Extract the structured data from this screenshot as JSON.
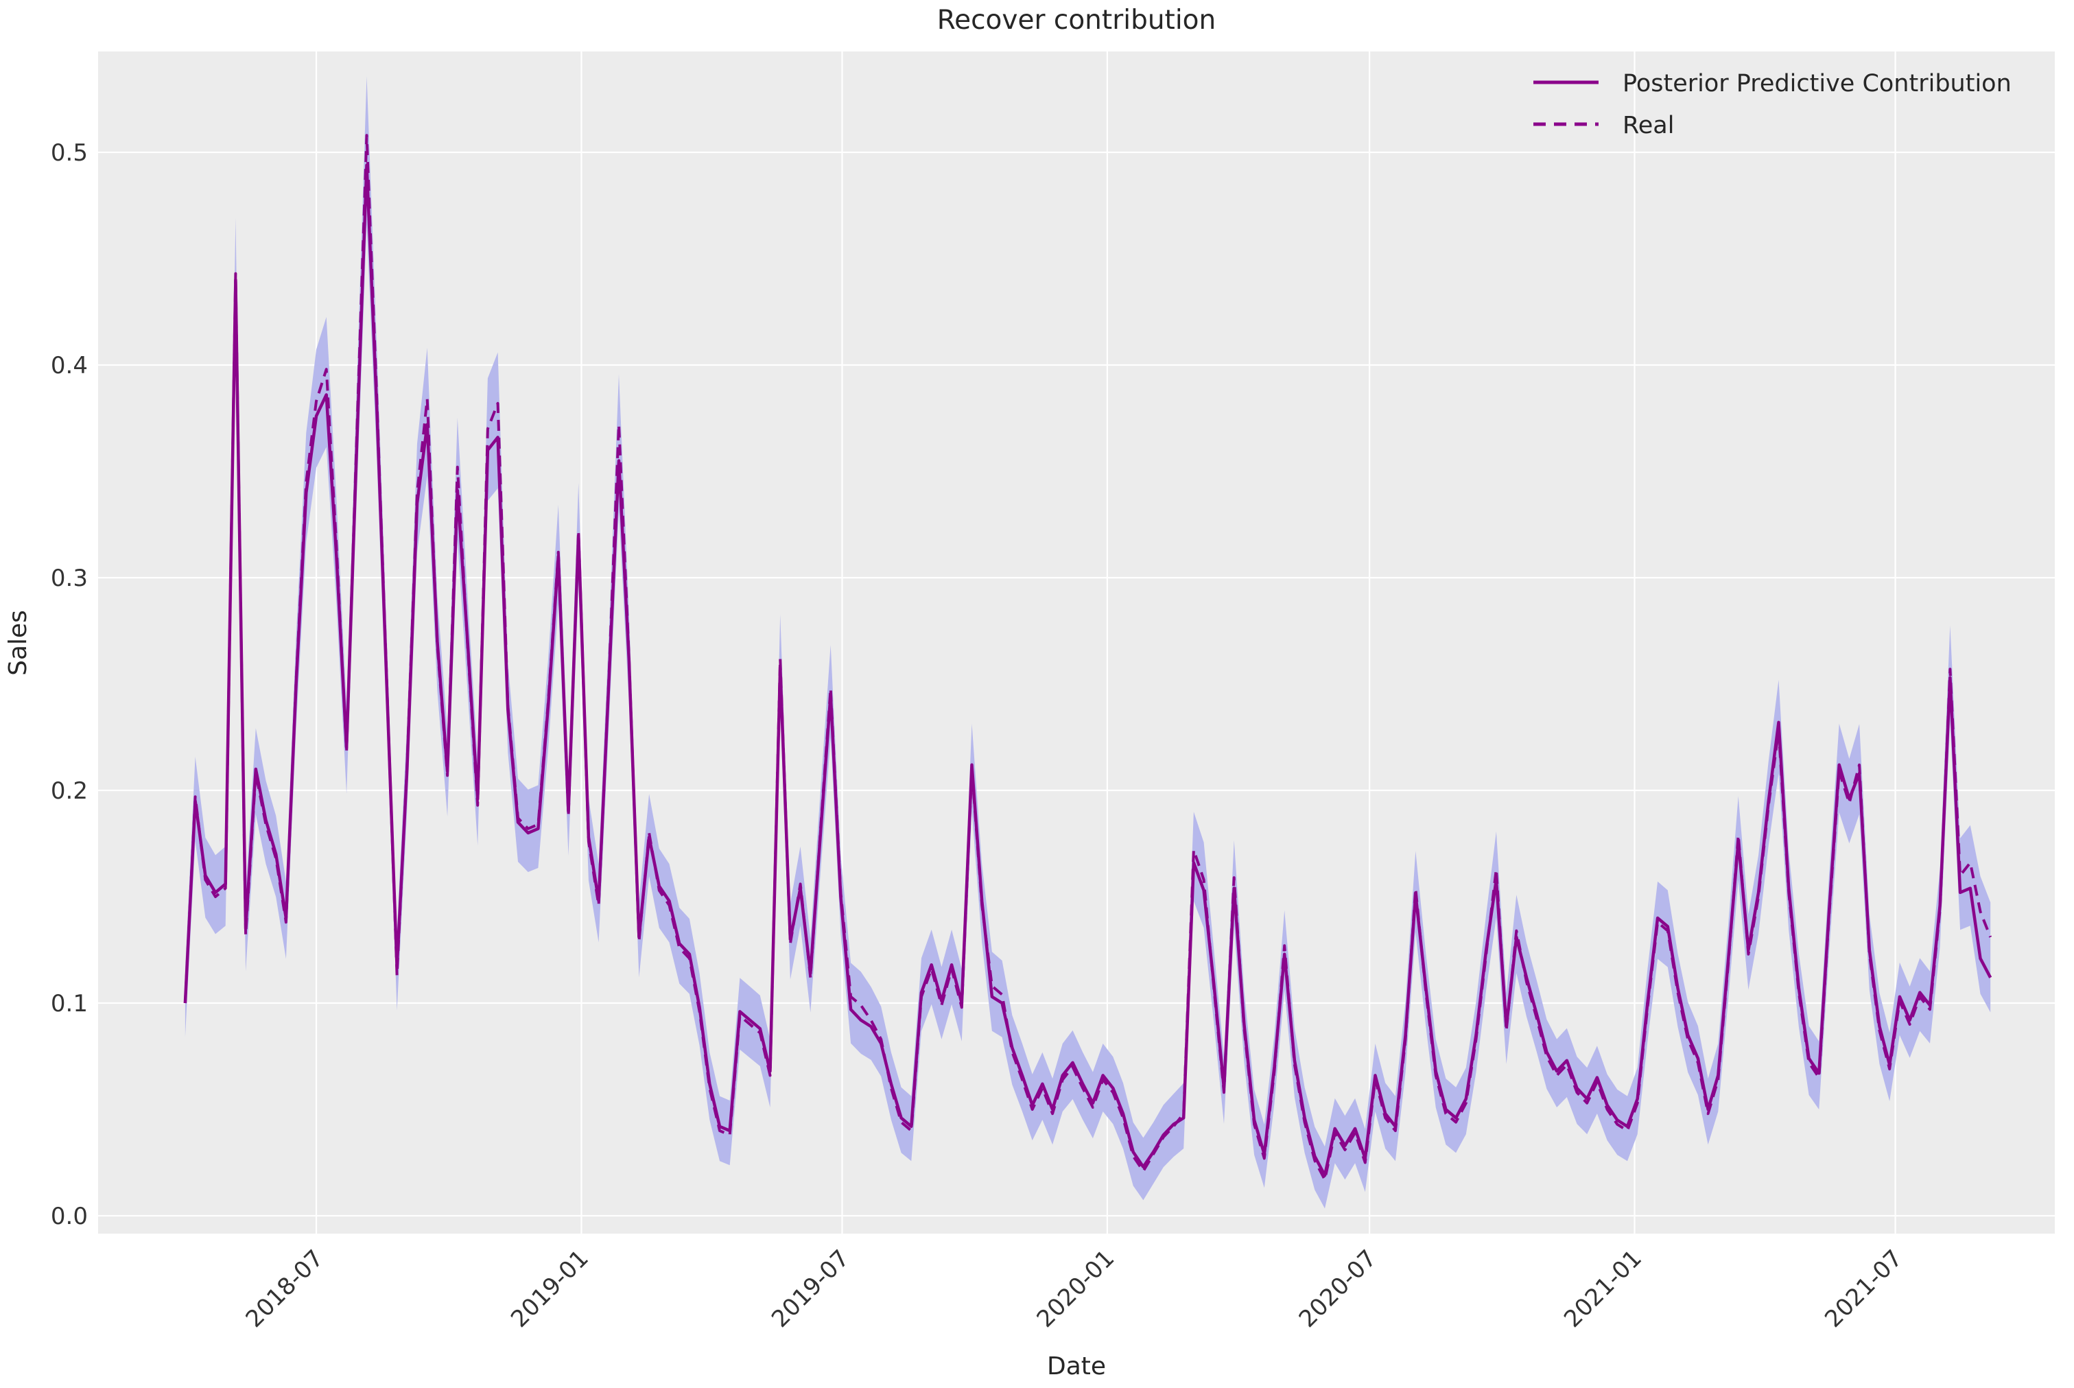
{
  "title": "Recover contribution",
  "axes": {
    "xlabel": "Date",
    "ylabel": "Sales",
    "y_tick_labels": [
      "0.0",
      "0.1",
      "0.2",
      "0.3",
      "0.4",
      "0.5"
    ],
    "y_tick_values": [
      0.0,
      0.1,
      0.2,
      0.3,
      0.4,
      0.5
    ],
    "x_tick_labels": [
      "2018-07",
      "2019-01",
      "2019-07",
      "2020-01",
      "2020-07",
      "2021-01",
      "2021-07"
    ],
    "x_tick_dates": [
      "2018-07-01",
      "2019-01-01",
      "2019-07-01",
      "2020-01-01",
      "2020-07-01",
      "2021-01-01",
      "2021-07-01"
    ]
  },
  "legend": {
    "entries": [
      {
        "label": "Posterior Predictive Contribution",
        "style": "solid"
      },
      {
        "label": "Real",
        "style": "dashed"
      }
    ],
    "position": "upper right"
  },
  "colors": {
    "line": "#8a058a",
    "band": "#b6b8ec",
    "plot_bg": "#ececec",
    "grid": "#ffffff",
    "text": "#262626"
  },
  "chart_data": {
    "type": "line",
    "title": "Recover contribution",
    "xlabel": "Date",
    "ylabel": "Sales",
    "x_start": "2018-04-01",
    "freq_days": 7,
    "n_points": 180,
    "x_axis_range": [
      "2018-02-02",
      "2021-10-24"
    ],
    "ylim": [
      0,
      0.55
    ],
    "grid": true,
    "legend_position": "upper right",
    "band": {
      "name": "posterior-hdi",
      "base_halfwidth": 0.013,
      "value_scale": 0.03
    },
    "series": [
      {
        "name": "Posterior Predictive Contribution",
        "style": "solid",
        "values": [
          0.1,
          0.195,
          0.16,
          0.152,
          0.156,
          0.44,
          0.135,
          0.21,
          0.186,
          0.17,
          0.14,
          0.25,
          0.34,
          0.376,
          0.386,
          0.31,
          0.22,
          0.36,
          0.494,
          0.38,
          0.248,
          0.117,
          0.21,
          0.335,
          0.372,
          0.27,
          0.209,
          0.341,
          0.27,
          0.196,
          0.36,
          0.366,
          0.238,
          0.185,
          0.18,
          0.182,
          0.24,
          0.31,
          0.19,
          0.32,
          0.178,
          0.148,
          0.25,
          0.355,
          0.262,
          0.131,
          0.178,
          0.155,
          0.148,
          0.128,
          0.123,
          0.098,
          0.062,
          0.042,
          0.04,
          0.096,
          0.092,
          0.088,
          0.068,
          0.258,
          0.13,
          0.154,
          0.114,
          0.18,
          0.245,
          0.15,
          0.097,
          0.092,
          0.089,
          0.081,
          0.062,
          0.046,
          0.042,
          0.105,
          0.118,
          0.101,
          0.118,
          0.1,
          0.212,
          0.148,
          0.103,
          0.1,
          0.079,
          0.066,
          0.052,
          0.062,
          0.05,
          0.066,
          0.072,
          0.062,
          0.053,
          0.066,
          0.06,
          0.048,
          0.03,
          0.023,
          0.03,
          0.038,
          0.043,
          0.046,
          0.166,
          0.153,
          0.109,
          0.06,
          0.154,
          0.09,
          0.045,
          0.029,
          0.07,
          0.123,
          0.073,
          0.046,
          0.028,
          0.019,
          0.041,
          0.033,
          0.041,
          0.027,
          0.066,
          0.048,
          0.042,
          0.085,
          0.151,
          0.108,
          0.068,
          0.05,
          0.046,
          0.055,
          0.085,
          0.125,
          0.158,
          0.089,
          0.131,
          0.112,
          0.095,
          0.077,
          0.068,
          0.073,
          0.06,
          0.055,
          0.065,
          0.052,
          0.045,
          0.042,
          0.055,
          0.1,
          0.14,
          0.136,
          0.107,
          0.085,
          0.074,
          0.05,
          0.066,
          0.12,
          0.176,
          0.125,
          0.152,
          0.195,
          0.232,
          0.154,
          0.107,
          0.074,
          0.067,
          0.143,
          0.212,
          0.196,
          0.208,
          0.125,
          0.089,
          0.071,
          0.103,
          0.092,
          0.105,
          0.099,
          0.146,
          0.253,
          0.152,
          0.154,
          0.121,
          0.112
        ]
      },
      {
        "name": "Real",
        "style": "dashed",
        "values": [
          0.1,
          0.197,
          0.158,
          0.15,
          0.154,
          0.443,
          0.132,
          0.208,
          0.184,
          0.168,
          0.138,
          0.252,
          0.345,
          0.383,
          0.398,
          0.315,
          0.218,
          0.365,
          0.508,
          0.385,
          0.25,
          0.113,
          0.212,
          0.34,
          0.384,
          0.268,
          0.207,
          0.352,
          0.268,
          0.193,
          0.37,
          0.382,
          0.24,
          0.187,
          0.182,
          0.184,
          0.242,
          0.312,
          0.188,
          0.322,
          0.176,
          0.146,
          0.252,
          0.372,
          0.264,
          0.129,
          0.18,
          0.153,
          0.146,
          0.126,
          0.121,
          0.096,
          0.06,
          0.04,
          0.038,
          0.094,
          0.09,
          0.086,
          0.066,
          0.262,
          0.128,
          0.156,
          0.112,
          0.182,
          0.248,
          0.152,
          0.103,
          0.099,
          0.092,
          0.083,
          0.06,
          0.044,
          0.04,
          0.103,
          0.116,
          0.099,
          0.116,
          0.098,
          0.21,
          0.146,
          0.108,
          0.104,
          0.077,
          0.064,
          0.05,
          0.06,
          0.048,
          0.064,
          0.07,
          0.06,
          0.051,
          0.064,
          0.058,
          0.046,
          0.028,
          0.021,
          0.029,
          0.037,
          0.042,
          0.048,
          0.172,
          0.158,
          0.107,
          0.058,
          0.159,
          0.088,
          0.043,
          0.027,
          0.068,
          0.127,
          0.071,
          0.044,
          0.026,
          0.017,
          0.039,
          0.031,
          0.039,
          0.025,
          0.064,
          0.046,
          0.04,
          0.083,
          0.154,
          0.106,
          0.066,
          0.048,
          0.044,
          0.053,
          0.083,
          0.123,
          0.163,
          0.087,
          0.134,
          0.11,
          0.093,
          0.075,
          0.066,
          0.071,
          0.058,
          0.053,
          0.063,
          0.05,
          0.043,
          0.04,
          0.053,
          0.098,
          0.138,
          0.134,
          0.105,
          0.083,
          0.072,
          0.048,
          0.064,
          0.118,
          0.179,
          0.123,
          0.15,
          0.193,
          0.228,
          0.152,
          0.105,
          0.072,
          0.065,
          0.141,
          0.209,
          0.194,
          0.212,
          0.123,
          0.087,
          0.069,
          0.101,
          0.09,
          0.103,
          0.097,
          0.144,
          0.257,
          0.16,
          0.166,
          0.143,
          0.131
        ]
      }
    ]
  }
}
